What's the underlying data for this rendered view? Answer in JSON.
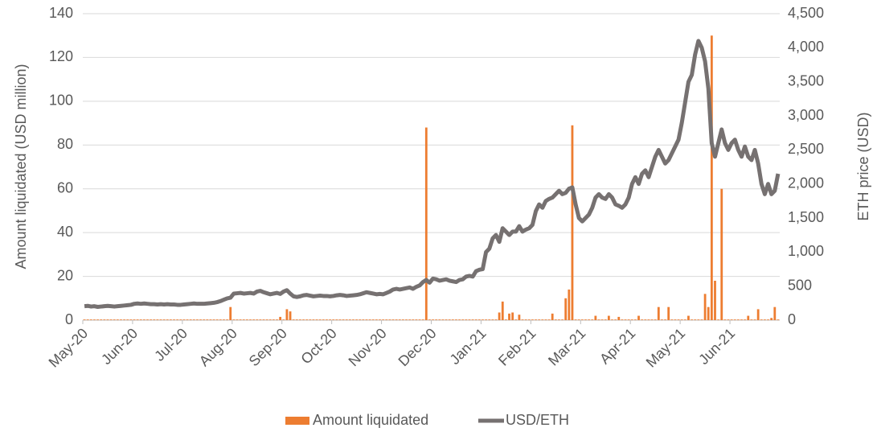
{
  "chart_data": {
    "type": "bar",
    "y_label": "Amount liquidated (USD million)",
    "y2_label": "ETH price (USD)",
    "categories": [
      "May-20",
      null,
      null,
      null,
      null,
      null,
      null,
      null,
      null,
      null,
      null,
      null,
      null,
      null,
      null,
      "Jun-20",
      null,
      null,
      null,
      null,
      null,
      null,
      null,
      null,
      null,
      null,
      null,
      null,
      null,
      null,
      "Jul-20",
      null,
      null,
      null,
      null,
      null,
      null,
      null,
      null,
      null,
      null,
      null,
      null,
      null,
      null,
      "Aug-20",
      null,
      null,
      null,
      null,
      null,
      null,
      null,
      null,
      null,
      null,
      null,
      null,
      null,
      null,
      "Sep-20",
      null,
      null,
      null,
      null,
      null,
      null,
      null,
      null,
      null,
      null,
      null,
      null,
      null,
      null,
      "Oct-20",
      null,
      null,
      null,
      null,
      null,
      null,
      null,
      null,
      null,
      null,
      null,
      null,
      null,
      null,
      "Nov-20",
      null,
      null,
      null,
      null,
      null,
      null,
      null,
      null,
      null,
      null,
      null,
      null,
      null,
      null,
      "Dec-20",
      null,
      null,
      null,
      null,
      null,
      null,
      null,
      null,
      null,
      null,
      null,
      null,
      null,
      null,
      "Jan-21",
      null,
      null,
      null,
      null,
      null,
      null,
      null,
      null,
      null,
      null,
      null,
      null,
      null,
      null,
      "Feb-21",
      null,
      null,
      null,
      null,
      null,
      null,
      null,
      null,
      null,
      null,
      null,
      null,
      null,
      null,
      "Mar-21",
      null,
      null,
      null,
      null,
      null,
      null,
      null,
      null,
      null,
      null,
      null,
      null,
      null,
      null,
      "Apr-21",
      null,
      null,
      null,
      null,
      null,
      null,
      null,
      null,
      null,
      null,
      null,
      null,
      null,
      null,
      "May-21",
      null,
      null,
      null,
      null,
      null,
      null,
      null,
      null,
      null,
      null,
      null,
      null,
      null,
      null,
      "Jun-21",
      null,
      null,
      null,
      null,
      null,
      null,
      null,
      null,
      null,
      null,
      null,
      null,
      null,
      null
    ],
    "series": [
      {
        "name": "Amount liquidated",
        "type": "bar",
        "axis": "y",
        "color": "#ED7D31",
        "values": [
          0.3,
          0.3,
          0.3,
          0.3,
          0.3,
          0.3,
          0.3,
          0.3,
          0.3,
          0.3,
          0.3,
          0.3,
          0.3,
          0.3,
          0.3,
          0.3,
          0.3,
          0.3,
          0.3,
          0.3,
          0.3,
          0.3,
          0.3,
          0.3,
          0.3,
          0.3,
          0.3,
          0.3,
          0.3,
          0.3,
          0.3,
          0.3,
          0.3,
          0.3,
          0.3,
          0.3,
          0.3,
          0.3,
          0.3,
          0.3,
          0.3,
          0.3,
          0.3,
          0.3,
          6,
          0.3,
          0.3,
          0.3,
          0.3,
          0.3,
          0.3,
          0.3,
          0.3,
          0.3,
          0.3,
          0.3,
          0.3,
          0.3,
          0.3,
          1.5,
          0.3,
          5,
          4,
          0.3,
          0.3,
          0.3,
          0.3,
          0.3,
          0.3,
          0.3,
          0.3,
          0.3,
          0.3,
          0.3,
          0.3,
          0.3,
          0.3,
          0.3,
          0.3,
          0.3,
          0.3,
          0.3,
          0.3,
          0.3,
          0.3,
          0.3,
          0.3,
          0.3,
          0.3,
          0.3,
          0.3,
          0.3,
          0.3,
          0.3,
          0.3,
          0.3,
          0.3,
          0.3,
          0.3,
          0.3,
          0.3,
          0.3,
          0.3,
          88,
          0.3,
          0.3,
          0.3,
          0.3,
          0.3,
          0.3,
          0.3,
          0.3,
          0.3,
          0.3,
          0.3,
          0.3,
          0.3,
          0.3,
          0.3,
          0.3,
          0.3,
          0.3,
          0.3,
          0.3,
          0.3,
          3.5,
          8.5,
          0.3,
          3,
          3.5,
          0.3,
          2.5,
          0.3,
          0.3,
          0.3,
          0.3,
          0.3,
          0.3,
          0.3,
          0.3,
          0.3,
          3,
          0.3,
          0.3,
          0.3,
          10,
          14,
          89,
          0.3,
          0.3,
          0.3,
          0.3,
          0.3,
          0.3,
          2,
          0.3,
          0.3,
          0.3,
          2,
          0.3,
          0.3,
          1.5,
          0.3,
          0.3,
          0.3,
          0.3,
          0.3,
          2,
          0.3,
          0.3,
          0.3,
          0.3,
          0.3,
          6,
          0.3,
          0.3,
          6,
          0.3,
          0.3,
          0.3,
          0.3,
          0.3,
          2,
          0.3,
          0.3,
          0.3,
          0.3,
          12,
          6,
          130,
          18,
          0.3,
          60,
          0.3,
          0.3,
          0.3,
          0.3,
          0.3,
          0.3,
          0.3,
          2,
          0.3,
          0.3,
          5,
          0.3,
          0.3,
          0.3,
          1,
          6,
          0.3
        ]
      },
      {
        "name": "USD/ETH",
        "type": "line",
        "axis": "y2",
        "color": "#767171",
        "values": [
          205,
          210,
          200,
          205,
          195,
          200,
          205,
          210,
          205,
          200,
          205,
          210,
          215,
          220,
          225,
          240,
          245,
          240,
          245,
          240,
          235,
          235,
          230,
          235,
          230,
          235,
          230,
          230,
          225,
          225,
          230,
          235,
          240,
          245,
          240,
          240,
          240,
          245,
          250,
          255,
          265,
          280,
          300,
          320,
          330,
          390,
          395,
          400,
          390,
          395,
          400,
          390,
          420,
          430,
          410,
          395,
          380,
          390,
          400,
          385,
          420,
          440,
          390,
          350,
          340,
          350,
          365,
          370,
          360,
          350,
          355,
          360,
          355,
          355,
          350,
          355,
          365,
          370,
          365,
          355,
          360,
          365,
          370,
          380,
          395,
          410,
          400,
          390,
          380,
          385,
          380,
          400,
          420,
          450,
          460,
          450,
          460,
          470,
          480,
          460,
          490,
          510,
          560,
          590,
          550,
          610,
          600,
          580,
          590,
          600,
          580,
          570,
          560,
          590,
          600,
          640,
          650,
          640,
          720,
          740,
          750,
          1000,
          1050,
          1200,
          1250,
          1150,
          1350,
          1300,
          1250,
          1300,
          1300,
          1380,
          1300,
          1330,
          1350,
          1400,
          1600,
          1700,
          1650,
          1750,
          1780,
          1800,
          1850,
          1900,
          1850,
          1870,
          1930,
          1950,
          1700,
          1500,
          1450,
          1500,
          1550,
          1650,
          1800,
          1850,
          1800,
          1780,
          1850,
          1800,
          1700,
          1680,
          1650,
          1700,
          1800,
          2000,
          2100,
          2000,
          2150,
          2200,
          2100,
          2250,
          2400,
          2500,
          2400,
          2300,
          2350,
          2450,
          2550,
          2650,
          2900,
          3200,
          3500,
          3600,
          3900,
          4100,
          4000,
          3800,
          3400,
          2600,
          2400,
          2600,
          2800,
          2600,
          2500,
          2600,
          2650,
          2500,
          2400,
          2550,
          2400,
          2350,
          2500,
          2300,
          2000,
          1850,
          2000,
          1850,
          1900,
          2150
        ]
      }
    ],
    "ylim": [
      0,
      140
    ],
    "yticks": [
      0,
      20,
      40,
      60,
      80,
      100,
      120,
      140
    ],
    "y2lim": [
      0,
      4500
    ],
    "y2ticks": [
      0,
      500,
      {
        "value": 1000,
        "label": "1,000"
      },
      {
        "value": 1500,
        "label": "1,500"
      },
      {
        "value": 2000,
        "label": "2,000"
      },
      {
        "value": 2500,
        "label": "2,500"
      },
      {
        "value": 3000,
        "label": "3,000"
      },
      {
        "value": 3500,
        "label": "3,500"
      },
      {
        "value": 4000,
        "label": "4,000"
      },
      {
        "value": 4500,
        "label": "4,500"
      }
    ],
    "grid": true,
    "legend": "bottom"
  }
}
